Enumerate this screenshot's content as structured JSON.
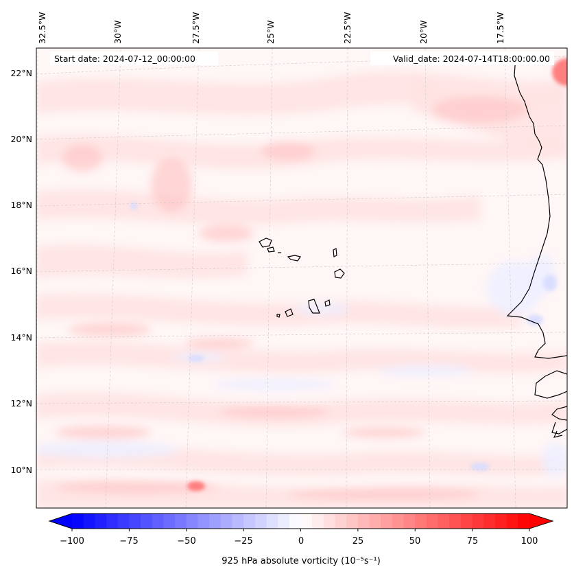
{
  "map": {
    "start_date_text": "Start date: 2024-07-12_00:00:00",
    "valid_date_text": "Valid_date: 2024-07-14T18:00:00.00",
    "lon_labels": [
      "32.5°W",
      "30°W",
      "27.5°W",
      "25°W",
      "22.5°W",
      "20°W",
      "17.5°W"
    ],
    "lat_labels": [
      "22°N",
      "20°N",
      "18°N",
      "16°N",
      "14°N",
      "12°N",
      "10°N"
    ],
    "field_colors": {
      "background": "#fff6f6",
      "light_red": "#ffe3e3",
      "mid_red": "#ffc8c8",
      "strong_red": "#ff7878",
      "light_blue": "#eef0ff",
      "mid_blue": "#d6dcff"
    },
    "coastline_color": "#000000",
    "gridline_color": "#c8c8c8"
  },
  "colorbar": {
    "label": "925 hPa absolute vorticity (10⁻⁵s⁻¹)",
    "ticks": [
      "−100",
      "−75",
      "−50",
      "−25",
      "0",
      "25",
      "50",
      "75",
      "100"
    ],
    "min": -100,
    "max": 100,
    "levels": 40,
    "cmap_start": "#0000ff",
    "cmap_mid": "#ffffff",
    "cmap_end": "#ff0000"
  }
}
